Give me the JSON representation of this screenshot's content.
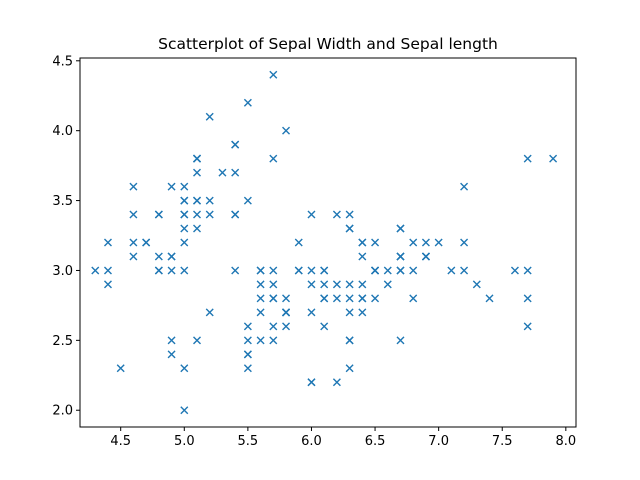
{
  "chart_data": {
    "type": "scatter",
    "title": "Scatterplot of Sepal Width and Sepal length",
    "xlabel": "",
    "ylabel": "",
    "xlim": [
      4.18,
      8.08
    ],
    "ylim": [
      1.88,
      4.52
    ],
    "grid": false,
    "marker": "x",
    "color": "#1f77b4",
    "x_ticks": [
      4.5,
      5.0,
      5.5,
      6.0,
      6.5,
      7.0,
      7.5,
      8.0
    ],
    "x_tick_labels": [
      "4.5",
      "5.0",
      "5.5",
      "6.0",
      "6.5",
      "7.0",
      "7.5",
      "8.0"
    ],
    "y_ticks": [
      2.0,
      2.5,
      3.0,
      3.5,
      4.0,
      4.5
    ],
    "y_tick_labels": [
      "2.0",
      "2.5",
      "3.0",
      "3.5",
      "4.0",
      "4.5"
    ],
    "series": [
      {
        "x": [
          5.1,
          4.9,
          4.7,
          4.6,
          5.0,
          5.4,
          4.6,
          5.0,
          4.4,
          4.9,
          5.4,
          4.8,
          4.8,
          4.3,
          5.8,
          5.7,
          5.4,
          5.1,
          5.7,
          5.1,
          5.4,
          5.1,
          4.6,
          5.1,
          4.8,
          5.0,
          5.0,
          5.2,
          5.2,
          4.7,
          4.8,
          5.4,
          5.2,
          5.5,
          4.9,
          5.0,
          5.5,
          4.9,
          4.4,
          5.1,
          5.0,
          4.5,
          4.4,
          5.0,
          5.1,
          4.8,
          5.1,
          4.6,
          5.3,
          5.0,
          7.0,
          6.4,
          6.9,
          5.5,
          6.5,
          5.7,
          6.3,
          4.9,
          6.6,
          5.2,
          5.0,
          5.9,
          6.0,
          6.1,
          5.6,
          6.7,
          5.6,
          5.8,
          6.2,
          5.6,
          5.9,
          6.1,
          6.3,
          6.1,
          6.4,
          6.6,
          6.8,
          6.7,
          6.0,
          5.7,
          5.5,
          5.5,
          5.8,
          6.0,
          5.4,
          6.0,
          6.7,
          6.3,
          5.6,
          5.5,
          5.5,
          6.1,
          5.8,
          5.0,
          5.6,
          5.7,
          5.7,
          6.2,
          5.1,
          5.7,
          6.3,
          5.8,
          7.1,
          6.3,
          6.5,
          7.6,
          4.9,
          7.3,
          6.7,
          7.2,
          6.5,
          6.4,
          6.8,
          5.7,
          5.8,
          6.4,
          6.5,
          7.7,
          7.7,
          6.0,
          6.9,
          5.6,
          7.7,
          6.3,
          6.7,
          7.2,
          6.2,
          6.1,
          6.4,
          7.2,
          7.4,
          7.9,
          6.4,
          6.3,
          6.1,
          7.7,
          6.3,
          6.4,
          6.0,
          6.9,
          6.7,
          6.9,
          5.8,
          6.8,
          6.7,
          6.7,
          6.3,
          6.5,
          6.2,
          5.9
        ],
        "y": [
          3.5,
          3.0,
          3.2,
          3.1,
          3.6,
          3.9,
          3.4,
          3.4,
          2.9,
          3.1,
          3.7,
          3.4,
          3.0,
          3.0,
          4.0,
          4.4,
          3.9,
          3.5,
          3.8,
          3.8,
          3.4,
          3.7,
          3.6,
          3.3,
          3.4,
          3.0,
          3.4,
          3.5,
          3.4,
          3.2,
          3.1,
          3.4,
          4.1,
          4.2,
          3.1,
          3.2,
          3.5,
          3.6,
          3.0,
          3.4,
          3.5,
          2.3,
          3.2,
          3.5,
          3.8,
          3.0,
          3.8,
          3.2,
          3.7,
          3.3,
          3.2,
          3.2,
          3.1,
          2.3,
          2.8,
          2.8,
          3.3,
          2.4,
          2.9,
          2.7,
          2.0,
          3.0,
          2.2,
          2.9,
          2.9,
          3.1,
          3.0,
          2.7,
          2.2,
          2.5,
          3.2,
          2.8,
          2.5,
          2.8,
          2.9,
          3.0,
          2.8,
          3.0,
          2.9,
          2.6,
          2.4,
          2.4,
          2.7,
          2.7,
          3.0,
          3.4,
          3.1,
          2.3,
          3.0,
          2.5,
          2.6,
          3.0,
          2.6,
          2.3,
          2.7,
          3.0,
          2.9,
          2.9,
          2.5,
          2.8,
          3.3,
          2.7,
          3.0,
          2.9,
          3.0,
          3.0,
          2.5,
          2.9,
          2.5,
          3.6,
          3.2,
          2.7,
          3.0,
          2.5,
          2.8,
          3.2,
          3.0,
          3.8,
          2.6,
          2.2,
          3.2,
          2.8,
          2.8,
          2.7,
          3.3,
          3.2,
          2.8,
          3.0,
          2.8,
          3.0,
          2.8,
          3.8,
          2.8,
          2.8,
          2.6,
          3.0,
          3.4,
          3.1,
          3.0,
          3.1,
          3.1,
          3.1,
          2.7,
          3.2,
          3.3,
          3.0,
          2.5,
          3.0,
          3.4,
          3.0
        ]
      }
    ]
  }
}
